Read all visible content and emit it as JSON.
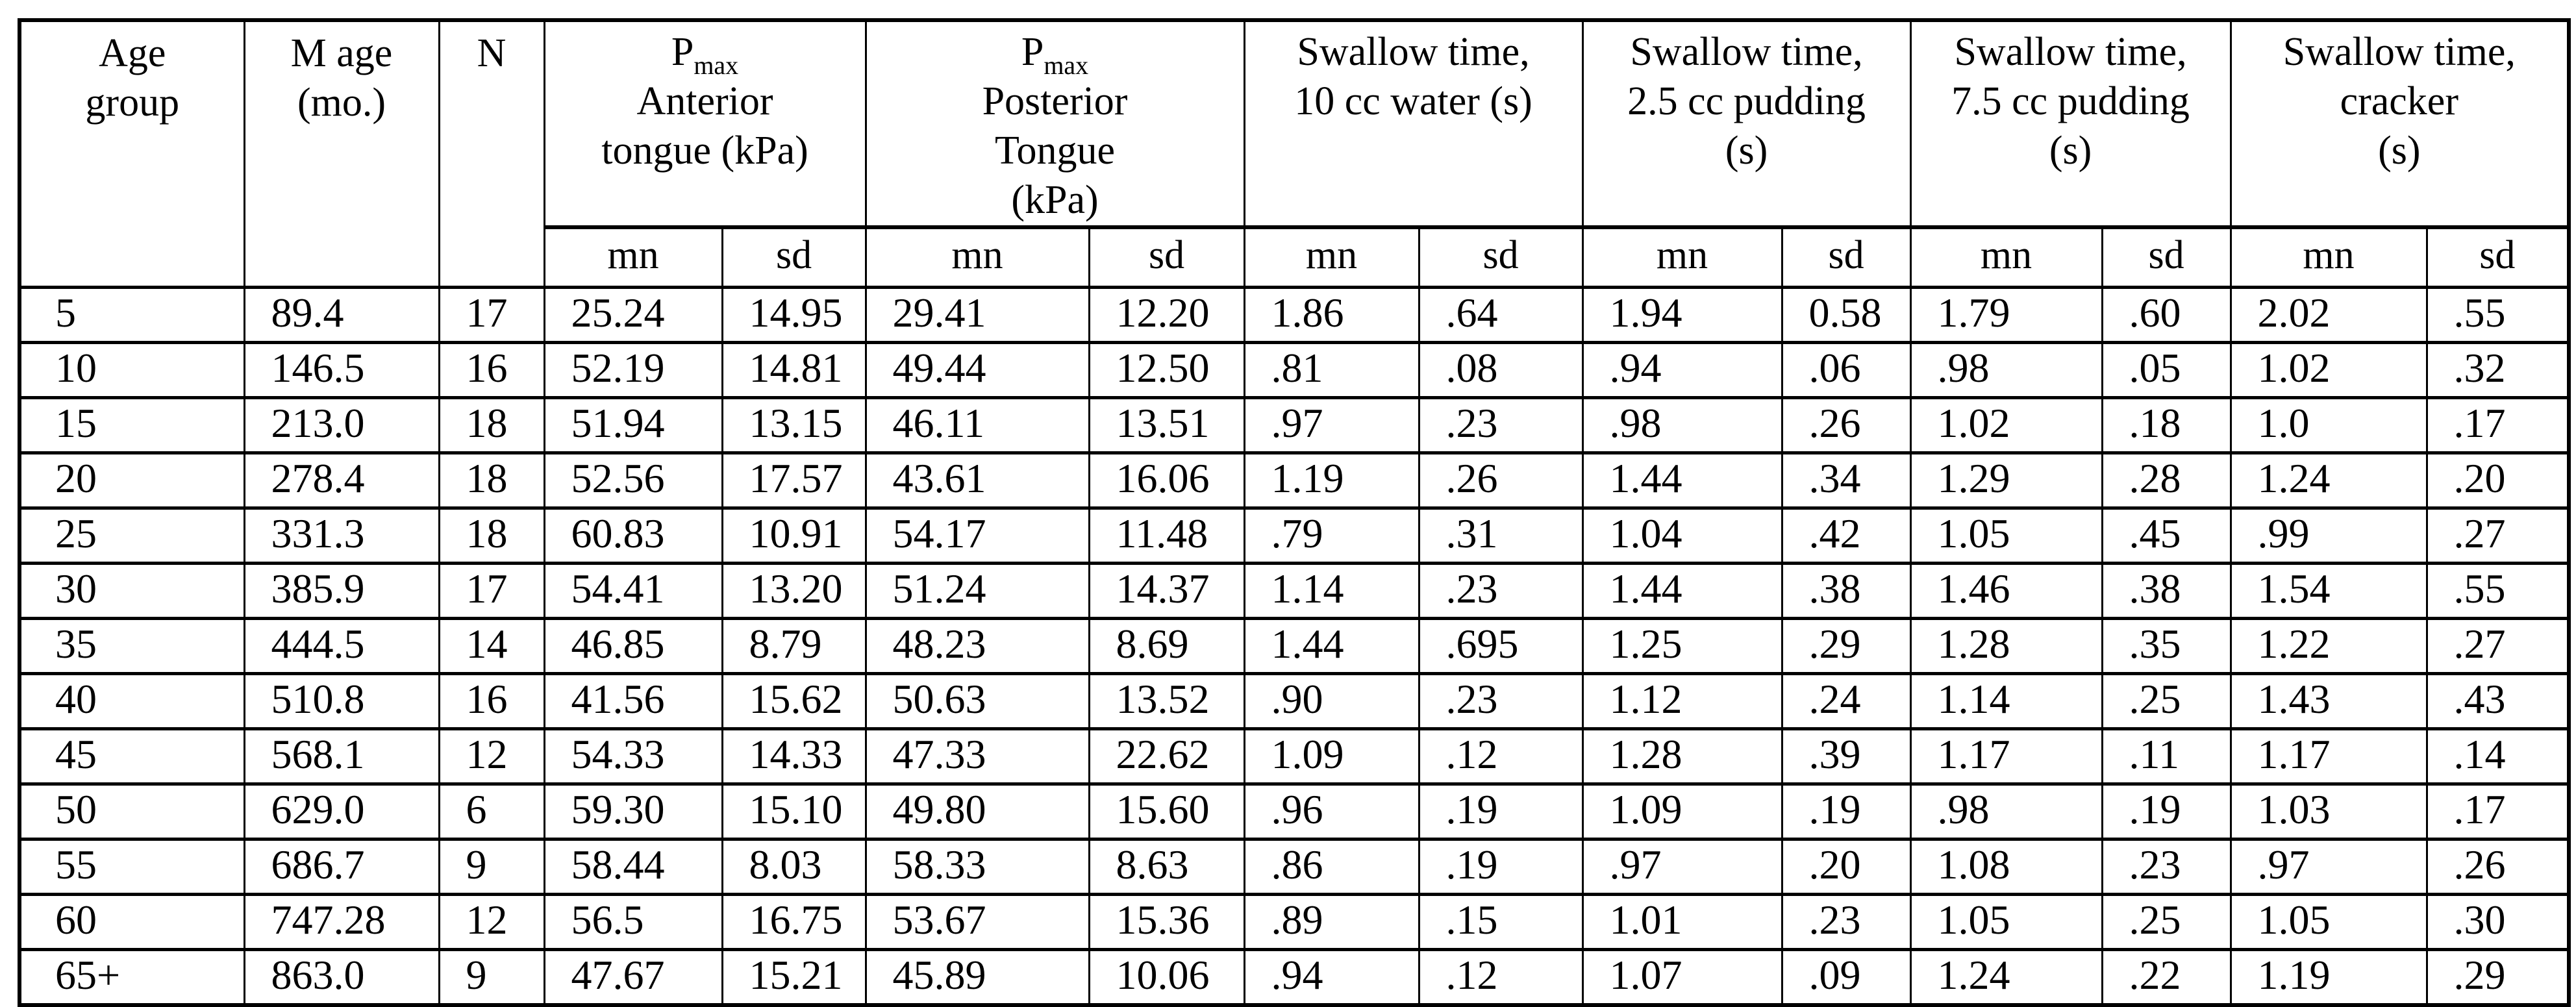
{
  "table": {
    "left_headers": [
      {
        "id": "age-group",
        "lines": [
          "Age",
          "group"
        ]
      },
      {
        "id": "m-age",
        "lines": [
          "M age",
          "(mo.)"
        ]
      },
      {
        "id": "n",
        "lines": [
          "N"
        ]
      }
    ],
    "groups": [
      {
        "id": "pmax-anterior",
        "symbol": "P",
        "subscript": "max",
        "lines": [
          "Anterior",
          "tongue (kPa)"
        ]
      },
      {
        "id": "pmax-posterior",
        "symbol": "P",
        "subscript": "max",
        "lines": [
          "Posterior",
          "Tongue",
          "(kPa)"
        ]
      },
      {
        "id": "swallow-water",
        "lines": [
          "Swallow time,",
          "10 cc water (s)"
        ]
      },
      {
        "id": "swallow-pudding-2-5",
        "lines": [
          "Swallow time,",
          "2.5 cc pudding",
          "(s)"
        ]
      },
      {
        "id": "swallow-pudding-7-5",
        "lines": [
          "Swallow time,",
          "7.5 cc pudding",
          "(s)"
        ]
      },
      {
        "id": "swallow-cracker",
        "lines": [
          "Swallow time,",
          "cracker",
          "(s)"
        ]
      }
    ],
    "subheaders": {
      "mn": "mn",
      "sd": "sd"
    },
    "column_ids": [
      "age-group",
      "m-age",
      "n",
      "anterior-mn",
      "anterior-sd",
      "posterior-mn",
      "posterior-sd",
      "water-mn",
      "water-sd",
      "pudding25-mn",
      "pudding25-sd",
      "pudding75-mn",
      "pudding75-sd",
      "cracker-mn",
      "cracker-sd"
    ],
    "rows": [
      [
        "5",
        "89.4",
        "17",
        "25.24",
        "14.95",
        "29.41",
        "12.20",
        "1.86",
        ".64",
        "1.94",
        "0.58",
        "1.79",
        ".60",
        "2.02",
        ".55"
      ],
      [
        "10",
        "146.5",
        "16",
        "52.19",
        "14.81",
        "49.44",
        "12.50",
        ".81",
        ".08",
        ".94",
        ".06",
        ".98",
        ".05",
        "1.02",
        ".32"
      ],
      [
        "15",
        "213.0",
        "18",
        "51.94",
        "13.15",
        "46.11",
        "13.51",
        ".97",
        ".23",
        ".98",
        ".26",
        "1.02",
        ".18",
        "1.0",
        ".17"
      ],
      [
        "20",
        "278.4",
        "18",
        "52.56",
        "17.57",
        "43.61",
        "16.06",
        "1.19",
        ".26",
        "1.44",
        ".34",
        "1.29",
        ".28",
        "1.24",
        ".20"
      ],
      [
        "25",
        "331.3",
        "18",
        "60.83",
        "10.91",
        "54.17",
        "11.48",
        ".79",
        ".31",
        "1.04",
        ".42",
        "1.05",
        ".45",
        ".99",
        ".27"
      ],
      [
        "30",
        "385.9",
        "17",
        "54.41",
        "13.20",
        "51.24",
        "14.37",
        "1.14",
        ".23",
        "1.44",
        ".38",
        "1.46",
        ".38",
        "1.54",
        ".55"
      ],
      [
        "35",
        "444.5",
        "14",
        "46.85",
        "8.79",
        "48.23",
        "8.69",
        "1.44",
        ".695",
        "1.25",
        ".29",
        "1.28",
        ".35",
        "1.22",
        ".27"
      ],
      [
        "40",
        "510.8",
        "16",
        "41.56",
        "15.62",
        "50.63",
        "13.52",
        ".90",
        ".23",
        "1.12",
        ".24",
        "1.14",
        ".25",
        "1.43",
        ".43"
      ],
      [
        "45",
        "568.1",
        "12",
        "54.33",
        "14.33",
        "47.33",
        "22.62",
        "1.09",
        ".12",
        "1.28",
        ".39",
        "1.17",
        ".11",
        "1.17",
        ".14"
      ],
      [
        "50",
        "629.0",
        "6",
        "59.30",
        "15.10",
        "49.80",
        "15.60",
        ".96",
        ".19",
        "1.09",
        ".19",
        ".98",
        ".19",
        "1.03",
        ".17"
      ],
      [
        "55",
        "686.7",
        "9",
        "58.44",
        "8.03",
        "58.33",
        "8.63",
        ".86",
        ".19",
        ".97",
        ".20",
        "1.08",
        ".23",
        ".97",
        ".26"
      ],
      [
        "60",
        "747.28",
        "12",
        "56.5",
        "16.75",
        "53.67",
        "15.36",
        ".89",
        ".15",
        "1.01",
        ".23",
        "1.05",
        ".25",
        "1.05",
        ".30"
      ],
      [
        "65+",
        "863.0",
        "9",
        "47.67",
        "15.21",
        "45.89",
        "10.06",
        ".94",
        ".12",
        "1.07",
        ".09",
        "1.24",
        ".22",
        "1.19",
        ".29"
      ]
    ]
  }
}
